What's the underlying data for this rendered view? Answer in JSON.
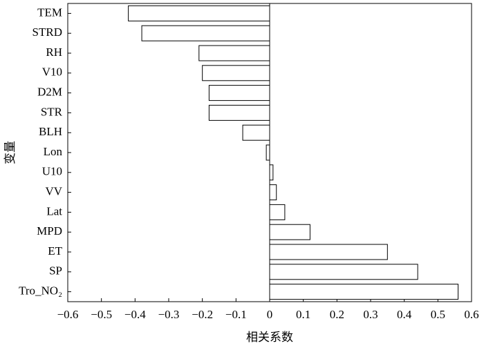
{
  "chart_data": {
    "type": "barh",
    "categories": [
      "TEM",
      "STRD",
      "RH",
      "V10",
      "D2M",
      "STR",
      "BLH",
      "Lon",
      "U10",
      "VV",
      "Lat",
      "MPD",
      "ET",
      "SP",
      "Tro_NO₂"
    ],
    "values": [
      -0.42,
      -0.38,
      -0.21,
      -0.2,
      -0.18,
      -0.18,
      -0.08,
      -0.01,
      0.01,
      0.02,
      0.045,
      0.12,
      0.35,
      0.44,
      0.56
    ],
    "color": "#ffffff",
    "x_label": "相关系数",
    "y_label": "变量",
    "xlim": [
      -0.6,
      0.6
    ],
    "xticks": [
      {
        "value": -0.6,
        "label": "−0.6"
      },
      {
        "value": -0.5,
        "label": "−0.5"
      },
      {
        "value": -0.4,
        "label": "−0.4"
      },
      {
        "value": -0.3,
        "label": "−0.3"
      },
      {
        "value": -0.2,
        "label": "−0.2"
      },
      {
        "value": -0.1,
        "label": "−0.1"
      },
      0,
      0.1,
      0.2,
      0.3,
      0.4,
      0.5,
      0.6
    ],
    "grid": false
  }
}
